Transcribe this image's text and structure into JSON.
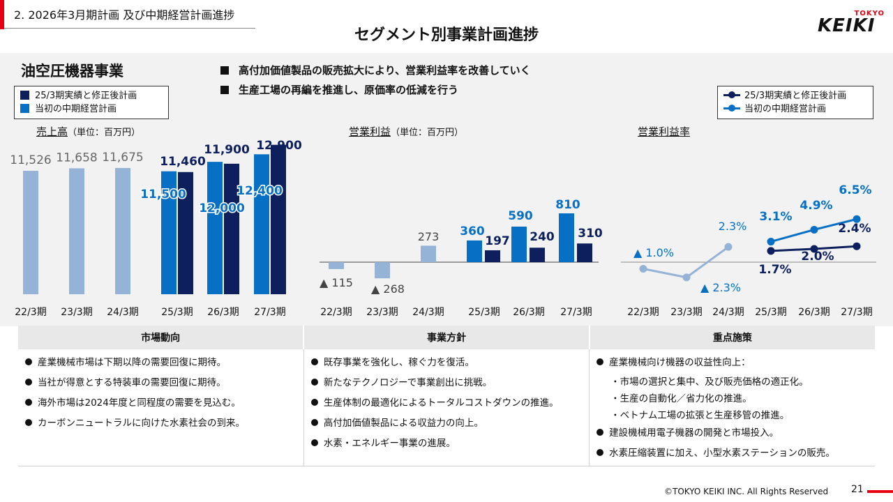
{
  "header": {
    "section": "2.  2026年3月期計画  及び中期経営計画進捗",
    "title": "セグメント別事業計画進捗",
    "logo_top": "TOKYO",
    "logo_main": "KEIKI"
  },
  "segment": {
    "title": "油空圧機器事業",
    "bullets": [
      "高付加価値製品の販売拡大により、営業利益率を改善していく",
      "生産工場の再編を推進し、原価率の低減を行う"
    ]
  },
  "legend_bar": [
    "25/3期実績と修正後計画",
    "当初の中期経営計画"
  ],
  "legend_line": [
    "25/3期実績と修正後計画",
    "当初の中期経営計画"
  ],
  "colors": {
    "dark": "#0d1f5c",
    "mid": "#0870c4",
    "light": "#95b3d7",
    "red": "#e60012"
  },
  "chart_titles": {
    "sales": {
      "title": "売上高",
      "unit": "（単位：百万円）"
    },
    "profit": {
      "title": "営業利益",
      "unit": "（単位：百万円）"
    },
    "margin": {
      "title": "営業利益率",
      "unit": ""
    }
  },
  "chart_data": [
    {
      "type": "bar",
      "title": "売上高",
      "unit": "百万円",
      "categories": [
        "22/3期",
        "23/3期",
        "24/3期",
        "25/3期",
        "26/3期",
        "27/3期"
      ],
      "actual": [
        11526,
        11658,
        11675,
        null,
        null,
        null
      ],
      "series": [
        {
          "name": "当初の中期経営計画",
          "values": [
            null,
            null,
            null,
            11500,
            12000,
            12400
          ]
        },
        {
          "name": "25/3期実績と修正後計画",
          "values": [
            null,
            null,
            null,
            11460,
            11900,
            12900
          ]
        }
      ],
      "labels": {
        "actual": [
          "11,526",
          "11,658",
          "11,675"
        ],
        "plan": [
          "11,500",
          "12,000",
          "12,400"
        ],
        "revised": [
          "11,460",
          "11,900",
          "12,900"
        ]
      }
    },
    {
      "type": "bar",
      "title": "営業利益",
      "unit": "百万円",
      "categories": [
        "22/3期",
        "23/3期",
        "24/3期",
        "25/3期",
        "26/3期",
        "27/3期"
      ],
      "actual": [
        -115,
        -268,
        273,
        null,
        null,
        null
      ],
      "series": [
        {
          "name": "当初の中期経営計画",
          "values": [
            null,
            null,
            null,
            360,
            590,
            810
          ]
        },
        {
          "name": "25/3期実績と修正後計画",
          "values": [
            null,
            null,
            null,
            197,
            240,
            310
          ]
        }
      ],
      "labels": {
        "actual": [
          "▲ 115",
          "▲ 268",
          "273"
        ],
        "plan": [
          "360",
          "590",
          "810"
        ],
        "revised": [
          "197",
          "240",
          "310"
        ]
      }
    },
    {
      "type": "line",
      "title": "営業利益率",
      "unit": "%",
      "categories": [
        "22/3期",
        "23/3期",
        "24/3期",
        "25/3期",
        "26/3期",
        "27/3期"
      ],
      "actual": [
        -1.0,
        -2.3,
        2.3,
        null,
        null,
        null
      ],
      "series": [
        {
          "name": "当初の中期経営計画",
          "values": [
            null,
            null,
            null,
            3.1,
            4.9,
            6.5
          ]
        },
        {
          "name": "25/3期実績と修正後計画",
          "values": [
            null,
            null,
            null,
            1.7,
            2.0,
            2.4
          ]
        }
      ],
      "labels": {
        "actual": [
          "▲ 1.0%",
          "▲ 2.3%",
          "2.3%"
        ],
        "plan": [
          "3.1%",
          "4.9%",
          "6.5%"
        ],
        "revised": [
          "1.7%",
          "2.0%",
          "2.4%"
        ]
      }
    }
  ],
  "table": {
    "headers": [
      "市場動向",
      "事業方針",
      "重点施策"
    ],
    "market": [
      "産業機械市場は下期以降の需要回復に期待。",
      "当社が得意とする特装車の需要回復に期待。",
      "海外市場は2024年度と同程度の需要を見込む。",
      "カーボンニュートラルに向けた水素社会の到来。"
    ],
    "policy": [
      "既存事業を強化し、稼ぐ力を復活。",
      "新たなテクノロジーで事業創出に挑戦。",
      "生産体制の最適化によるトータルコストダウンの推進。",
      "高付加価値製品による収益力の向上。",
      "水素・エネルギー事業の進展。"
    ],
    "measures": {
      "m1": "産業機械向け機器の収益性向上：",
      "sub": [
        "・市場の選択と集中、及び販売価格の適正化。",
        "・生産の自動化／省力化の推進。",
        "・ベトナム工場の拡張と生産移管の推進。"
      ],
      "m2": "建設機械用電子機器の開発と市場投入。",
      "m3": "水素圧縮装置に加え、小型水素ステーションの販売。"
    }
  },
  "footer": {
    "copyright": "©TOKYO KEIKI INC. All Rights Reserved",
    "page": "21"
  }
}
